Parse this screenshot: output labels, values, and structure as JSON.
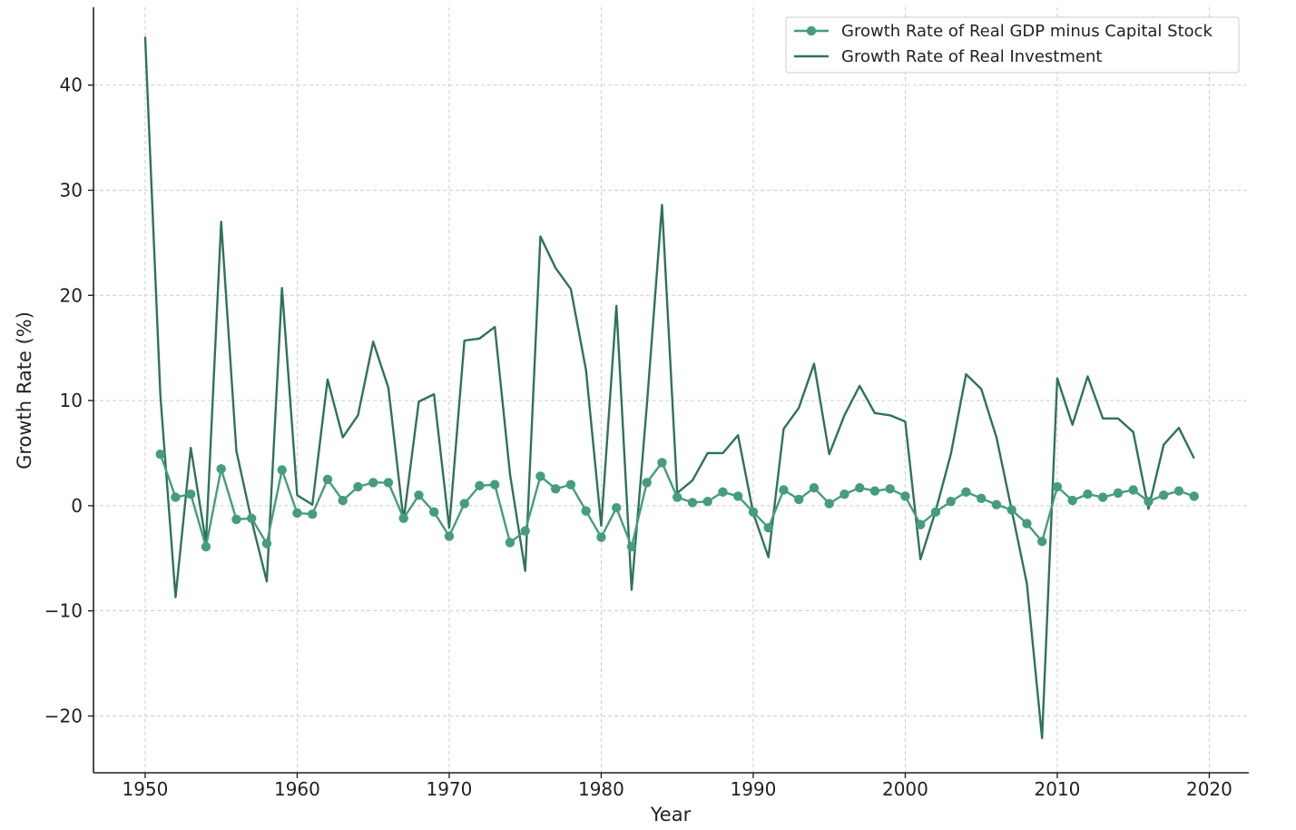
{
  "chart_data": {
    "type": "line",
    "xlabel": "Year",
    "ylabel": "Growth Rate (%)",
    "xlim": [
      1946.6,
      2022.6
    ],
    "ylim": [
      -25.4,
      47.4
    ],
    "xticks": [
      1950,
      1960,
      1970,
      1980,
      1990,
      2000,
      2010,
      2020
    ],
    "xtick_labels": [
      "1950",
      "1960",
      "1970",
      "1980",
      "1990",
      "2000",
      "2010",
      "2020"
    ],
    "yticks": [
      -20,
      -10,
      0,
      10,
      20,
      30,
      40
    ],
    "ytick_labels": [
      "−20",
      "−10",
      "0",
      "10",
      "20",
      "30",
      "40"
    ],
    "grid": true,
    "legend_position": "top-right",
    "colors": {
      "gdp": "#459d7b",
      "investment": "#2f7358"
    },
    "series": [
      {
        "name": "Growth Rate of Real GDP minus Capital Stock",
        "marker": "circle",
        "color": "#459d7b",
        "x": [
          1951,
          1952,
          1953,
          1954,
          1955,
          1956,
          1957,
          1958,
          1959,
          1960,
          1961,
          1962,
          1963,
          1964,
          1965,
          1966,
          1967,
          1968,
          1969,
          1970,
          1971,
          1972,
          1973,
          1974,
          1975,
          1976,
          1977,
          1978,
          1979,
          1980,
          1981,
          1982,
          1983,
          1984,
          1985,
          1986,
          1987,
          1988,
          1989,
          1990,
          1991,
          1992,
          1993,
          1994,
          1995,
          1996,
          1997,
          1998,
          1999,
          2000,
          2001,
          2002,
          2003,
          2004,
          2005,
          2006,
          2007,
          2008,
          2009,
          2010,
          2011,
          2012,
          2013,
          2014,
          2015,
          2016,
          2017,
          2018,
          2019
        ],
        "values": [
          4.9,
          0.8,
          1.1,
          -3.9,
          3.5,
          -1.3,
          -1.2,
          -3.6,
          3.4,
          -0.7,
          -0.8,
          2.5,
          0.5,
          1.8,
          2.2,
          2.2,
          -1.2,
          1.0,
          -0.6,
          -2.9,
          0.2,
          1.9,
          2.0,
          -3.5,
          -2.4,
          2.8,
          1.6,
          2.0,
          -0.5,
          -3.0,
          -0.2,
          -3.9,
          2.2,
          4.1,
          0.8,
          0.3,
          0.4,
          1.3,
          0.9,
          -0.6,
          -2.1,
          1.5,
          0.6,
          1.7,
          0.2,
          1.1,
          1.7,
          1.4,
          1.6,
          0.9,
          -1.8,
          -0.6,
          0.4,
          1.3,
          0.7,
          0.1,
          -0.4,
          -1.7,
          -3.4,
          1.8,
          0.5,
          1.1,
          0.8,
          1.2,
          1.5,
          0.4,
          1.0,
          1.4,
          0.9
        ]
      },
      {
        "name": "Growth Rate of Real Investment",
        "marker": "none",
        "color": "#2f7358",
        "x": [
          1950,
          1951,
          1952,
          1953,
          1954,
          1955,
          1956,
          1957,
          1958,
          1959,
          1960,
          1961,
          1962,
          1963,
          1964,
          1965,
          1966,
          1967,
          1968,
          1969,
          1970,
          1971,
          1972,
          1973,
          1974,
          1975,
          1976,
          1977,
          1978,
          1979,
          1980,
          1981,
          1982,
          1983,
          1984,
          1985,
          1986,
          1987,
          1988,
          1989,
          1990,
          1991,
          1992,
          1993,
          1994,
          1995,
          1996,
          1997,
          1998,
          1999,
          2000,
          2001,
          2002,
          2003,
          2004,
          2005,
          2006,
          2007,
          2008,
          2009,
          2010,
          2011,
          2012,
          2013,
          2014,
          2015,
          2016,
          2017,
          2018,
          2019
        ],
        "values": [
          44.6,
          10.5,
          -8.7,
          5.5,
          -3.5,
          27.0,
          5.2,
          -1.4,
          -7.2,
          20.7,
          1.0,
          0.1,
          12.0,
          6.5,
          8.6,
          15.6,
          11.2,
          -1.4,
          9.9,
          10.6,
          -2.1,
          15.7,
          15.9,
          17.0,
          3.0,
          -6.2,
          25.6,
          22.6,
          20.6,
          12.9,
          -1.9,
          19.0,
          -8.0,
          9.5,
          28.6,
          1.2,
          2.4,
          5.0,
          5.0,
          6.7,
          -0.7,
          -4.9,
          7.3,
          9.3,
          13.5,
          4.9,
          8.6,
          11.4,
          8.8,
          8.6,
          8.0,
          -5.1,
          -0.5,
          4.9,
          12.5,
          11.1,
          6.5,
          -0.4,
          -7.4,
          -22.1,
          12.1,
          7.7,
          12.3,
          8.3,
          8.3,
          7.0,
          -0.3,
          5.8,
          7.4,
          4.5
        ]
      }
    ]
  }
}
